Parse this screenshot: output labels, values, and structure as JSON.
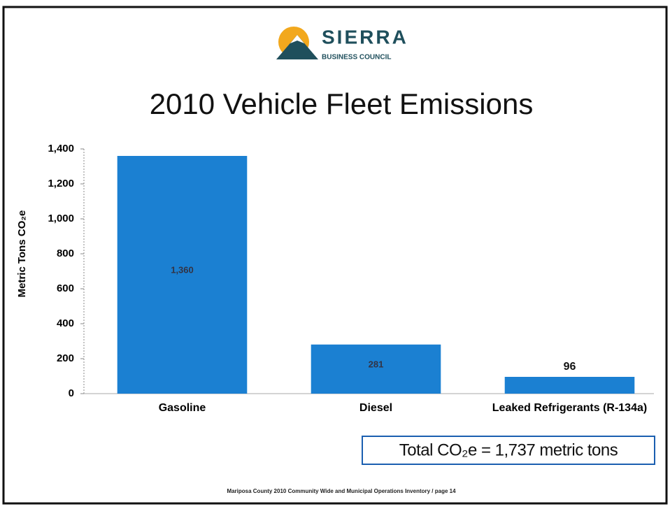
{
  "logo": {
    "name": "SIERRA",
    "subtitle": "BUSINESS COUNCIL"
  },
  "chart_data": {
    "type": "bar",
    "title": "2010 Vehicle Fleet Emissions",
    "y_label": "Metric Tons CO₂e",
    "categories": [
      "Gasoline",
      "Diesel",
      "Leaked Refrigerants (R-134a)"
    ],
    "values": [
      1360,
      281,
      96
    ],
    "value_labels": [
      "1,360",
      "281",
      "96"
    ],
    "color": "#1b80d2",
    "ylim": [
      0,
      1400
    ],
    "yticks": [
      0,
      200,
      400,
      600,
      800,
      {
        "value": 1000,
        "label": "1,000"
      },
      {
        "value": 1200,
        "label": "1,200"
      },
      {
        "value": 1400,
        "label": "1,400"
      }
    ],
    "annotation": "Total CO₂e = 1,737 metric tons"
  },
  "footer": "Mariposa County 2010 Community Wide and Municipal Operations Inventory / page 14"
}
